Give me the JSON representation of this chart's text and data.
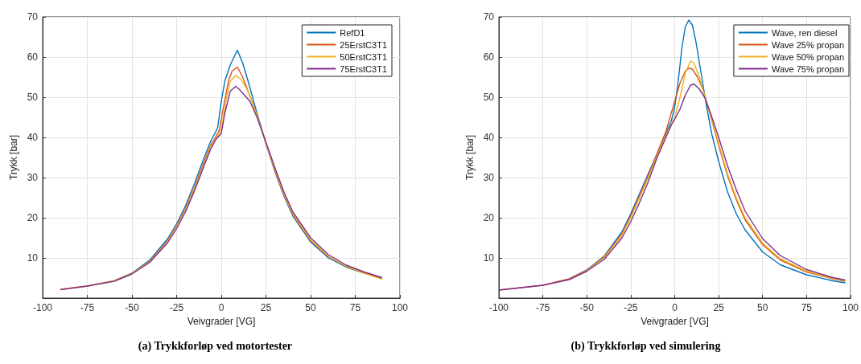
{
  "chart_data": [
    {
      "type": "line",
      "title": "(a) Trykkforløp ved motortester",
      "xlabel": "Veivgrader [VG]",
      "ylabel": "Trykk [bar]",
      "xlim": [
        -100,
        100
      ],
      "xticks": [
        -100,
        -75,
        -50,
        -25,
        0,
        25,
        50,
        75,
        100
      ],
      "ylim": [
        0,
        70
      ],
      "yticks": [
        10,
        20,
        30,
        40,
        50,
        60,
        70
      ],
      "grid": true,
      "legend": "top right",
      "series": [
        {
          "name": "RefD1",
          "color": "#0072bd",
          "x": [
            -60,
            -50,
            -40,
            -30,
            -25,
            -20,
            -15,
            -10,
            -6,
            -3,
            -2,
            0,
            2,
            5,
            9,
            12,
            15,
            20,
            25,
            30,
            35,
            40,
            50,
            60,
            70,
            80,
            90
          ],
          "values": [
            4.3,
            6.2,
            9.5,
            14.8,
            18.5,
            23,
            28.5,
            34.5,
            39,
            41.5,
            42.5,
            49,
            54,
            58,
            61.7,
            58.5,
            54,
            46,
            38.5,
            31.5,
            25.5,
            20.5,
            14,
            10,
            7.7,
            6.2,
            5.0
          ]
        },
        {
          "name": "25ErstC3T1",
          "color": "#d95319",
          "x": [
            -90,
            -75,
            -60,
            -50,
            -40,
            -30,
            -25,
            -20,
            -15,
            -10,
            -6,
            -2,
            -1,
            1,
            4,
            6,
            9,
            12,
            15,
            20,
            25,
            30,
            35,
            40,
            50,
            60,
            70,
            80,
            90
          ],
          "values": [
            2.2,
            3.0,
            4.3,
            6.1,
            9.2,
            14.3,
            18,
            22.3,
            27.5,
            33.5,
            38,
            41,
            42,
            47,
            54,
            56.5,
            57.5,
            55,
            51.5,
            45.5,
            38.5,
            31.8,
            25.8,
            20.8,
            14.3,
            10.3,
            7.9,
            6.3,
            4.9
          ]
        },
        {
          "name": "50ErstC3T1",
          "color": "#edb120",
          "x": [
            -90,
            -75,
            -60,
            -50,
            -40,
            -30,
            -25,
            -20,
            -15,
            -10,
            -6,
            -2,
            0,
            3,
            5,
            8,
            11,
            15,
            20,
            25,
            30,
            35,
            40,
            50,
            60,
            70,
            80,
            90
          ],
          "values": [
            2.2,
            3.0,
            4.3,
            6.1,
            9.1,
            14.1,
            17.8,
            22,
            27.2,
            33,
            37.6,
            40.3,
            42,
            50,
            54,
            55.4,
            54.5,
            51.5,
            45.5,
            38.6,
            32,
            26,
            21,
            14.5,
            10.4,
            7.9,
            6.2,
            4.7
          ]
        },
        {
          "name": "75ErstC3T1",
          "color": "#7e2f8e",
          "x": [
            -90,
            -75,
            -60,
            -50,
            -40,
            -30,
            -25,
            -20,
            -15,
            -10,
            -6,
            -3,
            0,
            2,
            5,
            8,
            10,
            13,
            16,
            20,
            25,
            30,
            35,
            40,
            50,
            60,
            70,
            80,
            90
          ],
          "values": [
            2.1,
            3.0,
            4.2,
            6.0,
            8.9,
            13.8,
            17.3,
            21.5,
            26.7,
            32.5,
            37,
            39.5,
            41,
            46,
            51.5,
            52.7,
            52,
            50.5,
            49,
            45,
            38.8,
            32.5,
            26.5,
            21.5,
            15,
            10.8,
            8.2,
            6.5,
            5.1
          ]
        }
      ]
    },
    {
      "type": "line",
      "title": "(b) Trykkforløp ved simulering",
      "xlabel": "Veivgrader [VG]",
      "ylabel": "Trykk [bar]",
      "xlim": [
        -100,
        100
      ],
      "xticks": [
        -100,
        -75,
        -50,
        -25,
        0,
        25,
        50,
        75,
        100
      ],
      "ylim": [
        0,
        70
      ],
      "yticks": [
        10,
        20,
        30,
        40,
        50,
        60,
        70
      ],
      "grid": true,
      "legend": "top right",
      "series": [
        {
          "name": "Wave, ren diesel",
          "color": "#0072bd",
          "x": [
            -60,
            -50,
            -40,
            -30,
            -25,
            -20,
            -15,
            -10,
            -5,
            -2,
            0,
            2,
            4,
            6,
            8,
            10,
            12,
            15,
            18,
            21,
            25,
            30,
            35,
            40,
            50,
            60,
            75,
            90,
            97
          ],
          "values": [
            4.8,
            7,
            10.5,
            16.5,
            21,
            26,
            31,
            36,
            41,
            44,
            47.5,
            54,
            62,
            67.5,
            69.2,
            68,
            64,
            56,
            48,
            41,
            34,
            26.5,
            21,
            17,
            11.5,
            8.3,
            5.8,
            4.3,
            3.8
          ]
        },
        {
          "name": "Wave 25% propan",
          "color": "#d95319",
          "x": [
            -100,
            -75,
            -60,
            -50,
            -40,
            -30,
            -25,
            -20,
            -15,
            -10,
            -5,
            0,
            3,
            6,
            8,
            10,
            13,
            16,
            20,
            25,
            30,
            35,
            40,
            50,
            60,
            75,
            90,
            97
          ],
          "values": [
            2.0,
            3.2,
            4.8,
            6.9,
            10.3,
            16,
            20.5,
            25.5,
            30.5,
            36,
            41.5,
            49,
            53.5,
            56.5,
            57.2,
            57,
            55,
            52,
            46,
            38,
            30.5,
            24.5,
            19.5,
            13.3,
            9.5,
            6.5,
            4.8,
            4.2
          ]
        },
        {
          "name": "Wave 50% propan",
          "color": "#edb120",
          "x": [
            -60,
            -50,
            -40,
            -30,
            -25,
            -20,
            -15,
            -10,
            -5,
            0,
            3,
            6,
            9,
            11,
            14,
            18,
            22,
            25,
            30,
            35,
            40,
            50,
            60,
            75,
            90,
            97
          ],
          "values": [
            4.7,
            6.8,
            10.1,
            15.7,
            20,
            25,
            30,
            35.5,
            40.5,
            45,
            50,
            56,
            59,
            58.5,
            55,
            49,
            43,
            38.5,
            31,
            25,
            20,
            13.7,
            9.8,
            6.7,
            4.9,
            4.3
          ]
        },
        {
          "name": "Wave 75% propan",
          "color": "#7e2f8e",
          "x": [
            -100,
            -75,
            -60,
            -50,
            -40,
            -30,
            -25,
            -20,
            -15,
            -10,
            -5,
            -2,
            0,
            3,
            6,
            9,
            11,
            14,
            17,
            20,
            25,
            30,
            35,
            40,
            50,
            60,
            75,
            90,
            97
          ],
          "values": [
            2.0,
            3.2,
            4.6,
            6.7,
            9.7,
            15,
            19,
            23.8,
            29,
            35,
            40,
            43,
            44.5,
            47,
            50.5,
            53,
            53.3,
            52,
            50,
            46.5,
            40,
            33,
            27,
            21.7,
            14.8,
            10.6,
            7.1,
            5.1,
            4.5
          ]
        }
      ]
    }
  ]
}
